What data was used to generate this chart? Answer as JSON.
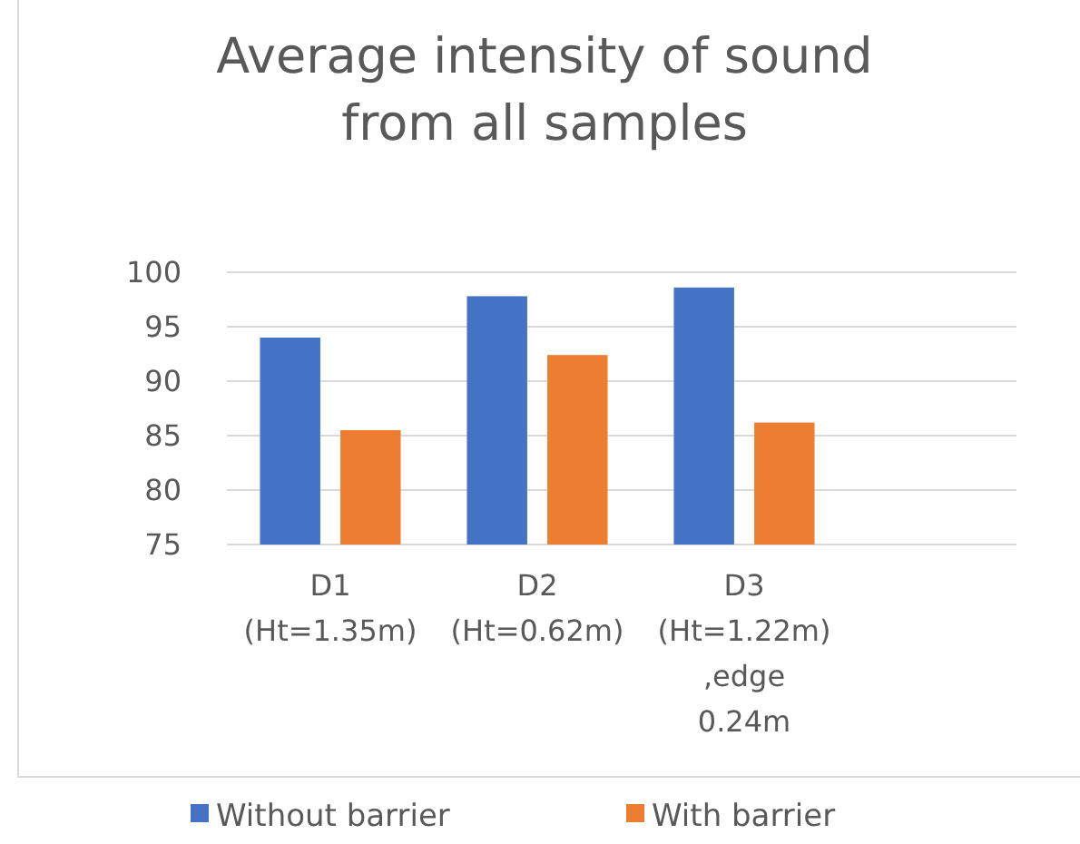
{
  "chart_data": {
    "type": "bar",
    "title": "Average intensity of sound from all samples",
    "categories": [
      "D1 (Ht=1.35m)",
      "D2 (Ht=0.62m)",
      "D3 (Ht=1.22m) ,edge 0.24m"
    ],
    "series": [
      {
        "name": "Without barrier",
        "color": "#4472c4",
        "values": [
          94.0,
          97.8,
          98.6
        ]
      },
      {
        "name": "With barrier",
        "color": "#ed7d31",
        "values": [
          85.5,
          92.4,
          86.2
        ]
      }
    ],
    "ylim": [
      75,
      100
    ],
    "yticks": [
      75,
      80,
      85,
      90,
      95,
      100
    ],
    "grid": "y",
    "legend": "bottom"
  }
}
